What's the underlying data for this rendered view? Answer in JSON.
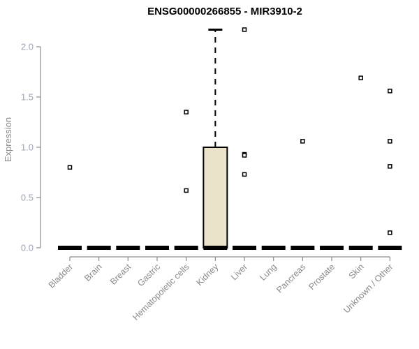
{
  "chart_data": {
    "type": "boxplot",
    "title": "ENSG00000266855 - MIR3910-2",
    "ylabel": "Expression",
    "xlabel": "",
    "ylim": [
      0,
      2.2
    ],
    "grid": false,
    "legend": false,
    "yticks": [
      0.0,
      0.5,
      1.0,
      1.5,
      2.0
    ],
    "ytick_labels": [
      "0.0",
      "0.5",
      "1.0",
      "1.5",
      "2.0"
    ],
    "categories": [
      "Bladder",
      "Brain",
      "Breast",
      "Gastric",
      "Hematopoietic cells",
      "Kidney",
      "Liver",
      "Lung",
      "Pancreas",
      "Prostate",
      "Skin",
      "Unknown / Other"
    ],
    "boxes": [
      {
        "category": "Bladder",
        "whisker_low": 0,
        "q1": 0,
        "median": 0,
        "q3": 0,
        "whisker_high": 0,
        "outliers": [
          0.8
        ]
      },
      {
        "category": "Brain",
        "whisker_low": 0,
        "q1": 0,
        "median": 0,
        "q3": 0,
        "whisker_high": 0,
        "outliers": []
      },
      {
        "category": "Breast",
        "whisker_low": 0,
        "q1": 0,
        "median": 0,
        "q3": 0,
        "whisker_high": 0,
        "outliers": []
      },
      {
        "category": "Gastric",
        "whisker_low": 0,
        "q1": 0,
        "median": 0,
        "q3": 0,
        "whisker_high": 0,
        "outliers": []
      },
      {
        "category": "Hematopoietic cells",
        "whisker_low": 0,
        "q1": 0,
        "median": 0,
        "q3": 0,
        "whisker_high": 0,
        "outliers": [
          1.35,
          0.57
        ]
      },
      {
        "category": "Kidney",
        "whisker_low": 0,
        "q1": 0,
        "median": 0,
        "q3": 1.0,
        "whisker_high": 2.17,
        "outliers": []
      },
      {
        "category": "Liver",
        "whisker_low": 0,
        "q1": 0,
        "median": 0,
        "q3": 0,
        "whisker_high": 0,
        "outliers": [
          2.17,
          0.93,
          0.92,
          0.73
        ]
      },
      {
        "category": "Lung",
        "whisker_low": 0,
        "q1": 0,
        "median": 0,
        "q3": 0,
        "whisker_high": 0,
        "outliers": []
      },
      {
        "category": "Pancreas",
        "whisker_low": 0,
        "q1": 0,
        "median": 0,
        "q3": 0,
        "whisker_high": 0,
        "outliers": [
          1.06
        ]
      },
      {
        "category": "Prostate",
        "whisker_low": 0,
        "q1": 0,
        "median": 0,
        "q3": 0,
        "whisker_high": 0,
        "outliers": []
      },
      {
        "category": "Skin",
        "whisker_low": 0,
        "q1": 0,
        "median": 0,
        "q3": 0,
        "whisker_high": 0,
        "outliers": [
          1.69
        ]
      },
      {
        "category": "Unknown / Other",
        "whisker_low": 0,
        "q1": 0,
        "median": 0,
        "q3": 0,
        "whisker_high": 0,
        "outliers": [
          1.56,
          1.06,
          0.81,
          0.15
        ]
      }
    ],
    "colors": {
      "title": "#000000",
      "box_fill": "#eae3c9",
      "box_stroke": "#000000",
      "median": "#000000",
      "whisker": "#000000",
      "axis_line": "#8c8c8c",
      "y_tick_label": "#9aa5b1",
      "x_tick_label": "#8a8a8a",
      "y_axis_title": "#8a8a8a",
      "outlier_stroke": "#000000",
      "outlier_fill": "#ffffff",
      "background": "#ffffff"
    }
  }
}
